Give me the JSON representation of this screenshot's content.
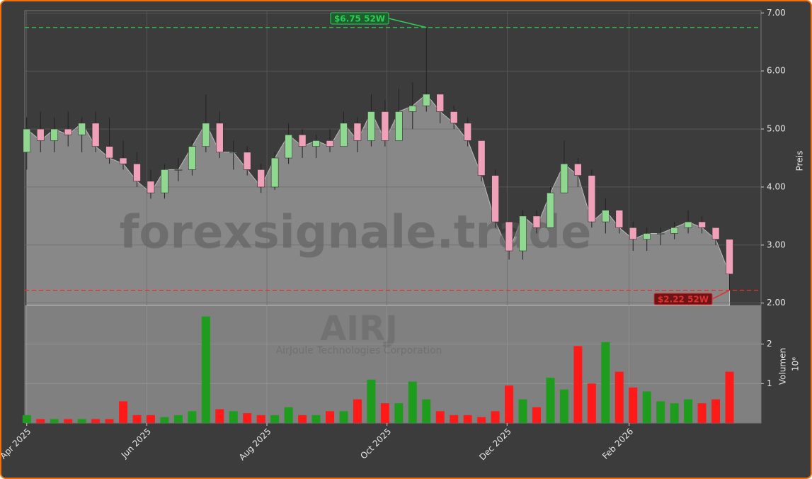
{
  "chart_data": {
    "type": "candlestick",
    "ticker": "AIRJ",
    "company": "AirJoule Technologies Corporation",
    "watermark": "forexsignale.trade",
    "ylabel": "Preis",
    "volume_label": "Volumen",
    "volume_unit": "10⁶",
    "x": [
      0,
      7,
      14,
      21,
      28,
      35,
      42,
      49,
      56,
      63,
      70,
      77,
      84,
      91,
      98,
      105,
      112,
      119,
      126,
      133,
      140,
      147,
      154,
      161,
      168,
      175,
      182,
      189,
      196,
      203,
      210,
      217,
      224,
      231,
      238,
      245,
      252,
      259,
      266,
      273,
      280,
      287,
      294,
      301,
      308,
      315,
      322,
      329,
      336,
      343,
      350,
      357
    ],
    "open": [
      4.6,
      5.0,
      4.8,
      5.0,
      4.9,
      5.1,
      4.7,
      4.5,
      4.4,
      4.1,
      3.9,
      4.3,
      4.3,
      4.7,
      5.1,
      4.6,
      4.6,
      4.3,
      4.0,
      4.5,
      4.9,
      4.7,
      4.8,
      4.7,
      5.1,
      4.8,
      5.3,
      4.8,
      5.3,
      5.4,
      5.6,
      5.3,
      5.1,
      4.8,
      4.2,
      3.4,
      2.9,
      3.5,
      3.3,
      3.9,
      4.4,
      4.2,
      3.4,
      3.6,
      3.3,
      3.1,
      3.2,
      3.2,
      3.3,
      3.4,
      3.3,
      3.1
    ],
    "high": [
      5.2,
      5.3,
      5.2,
      5.3,
      5.2,
      5.3,
      5.2,
      4.8,
      4.6,
      4.3,
      4.4,
      4.5,
      4.8,
      5.6,
      5.3,
      4.8,
      4.7,
      4.4,
      4.6,
      5.1,
      5.0,
      4.9,
      5.0,
      5.3,
      5.2,
      5.6,
      5.5,
      5.7,
      5.8,
      6.75,
      5.6,
      5.4,
      5.2,
      4.8,
      4.3,
      3.4,
      3.6,
      3.6,
      4.0,
      4.8,
      4.5,
      4.3,
      3.8,
      3.6,
      3.4,
      3.3,
      3.3,
      3.4,
      3.6,
      3.5,
      3.3,
      3.1
    ],
    "low": [
      4.3,
      4.6,
      4.6,
      4.7,
      4.6,
      4.6,
      4.4,
      4.3,
      4.0,
      3.8,
      3.8,
      4.1,
      4.2,
      4.6,
      4.5,
      4.3,
      4.2,
      3.9,
      3.95,
      4.4,
      4.5,
      4.5,
      4.6,
      4.7,
      4.6,
      4.7,
      4.7,
      4.8,
      5.0,
      5.3,
      5.1,
      5.0,
      4.7,
      4.1,
      3.3,
      2.75,
      2.75,
      3.2,
      3.3,
      3.9,
      4.0,
      3.3,
      3.2,
      3.2,
      2.9,
      2.9,
      3.0,
      3.1,
      3.2,
      3.2,
      3.0,
      2.22
    ],
    "close": [
      5.0,
      4.8,
      5.0,
      4.9,
      5.1,
      4.7,
      4.5,
      4.4,
      4.1,
      3.9,
      4.3,
      4.3,
      4.7,
      5.1,
      4.6,
      4.6,
      4.3,
      4.0,
      4.5,
      4.9,
      4.7,
      4.8,
      4.7,
      5.1,
      4.8,
      5.3,
      4.8,
      5.3,
      5.4,
      5.6,
      5.3,
      5.1,
      4.8,
      4.2,
      3.4,
      2.9,
      3.5,
      3.3,
      3.9,
      4.4,
      4.2,
      3.4,
      3.6,
      3.3,
      3.1,
      3.2,
      3.2,
      3.3,
      3.4,
      3.3,
      3.1,
      2.5
    ],
    "volume": [
      0.2,
      0.1,
      0.1,
      0.1,
      0.1,
      0.1,
      0.1,
      0.55,
      0.2,
      0.2,
      0.15,
      0.2,
      0.3,
      2.7,
      0.35,
      0.3,
      0.25,
      0.2,
      0.2,
      0.4,
      0.2,
      0.2,
      0.3,
      0.3,
      0.6,
      1.1,
      0.5,
      0.5,
      1.05,
      0.6,
      0.3,
      0.2,
      0.2,
      0.15,
      0.3,
      0.95,
      0.6,
      0.4,
      1.15,
      0.85,
      1.95,
      1.0,
      2.05,
      1.3,
      0.9,
      0.8,
      0.55,
      0.5,
      0.6,
      0.5,
      0.6,
      1.3
    ],
    "up_color": "#1e9c1e",
    "down_color": "#ff1a1a",
    "area_color": "#888888",
    "xlim": [
      -1,
      373
    ],
    "xticks": [
      {
        "value": 0,
        "label": "Apr 2025"
      },
      {
        "value": 61,
        "label": "Jun 2025"
      },
      {
        "value": 122,
        "label": "Aug 2025"
      },
      {
        "value": 183,
        "label": "Oct 2025"
      },
      {
        "value": 244,
        "label": "Dec 2025"
      },
      {
        "value": 306,
        "label": "Feb 2026"
      }
    ],
    "ylim": [
      1.96,
      7.04
    ],
    "yticks": [
      {
        "value": 2,
        "label": "2.00"
      },
      {
        "value": 3,
        "label": "3.00"
      },
      {
        "value": 4,
        "label": "4.00"
      },
      {
        "value": 5,
        "label": "5.00"
      },
      {
        "value": 6,
        "label": "6.00"
      },
      {
        "value": 7,
        "label": "7.00"
      }
    ],
    "volume_ylim": [
      0,
      2.98
    ],
    "volume_yticks": [
      1,
      2
    ],
    "grid": true,
    "annotations": [
      {
        "value": 6.75,
        "label": "$6.75 52W",
        "color": "#2ecc55"
      },
      {
        "value": 2.22,
        "label": "$2.22 52W",
        "color": "#e03030"
      }
    ]
  }
}
